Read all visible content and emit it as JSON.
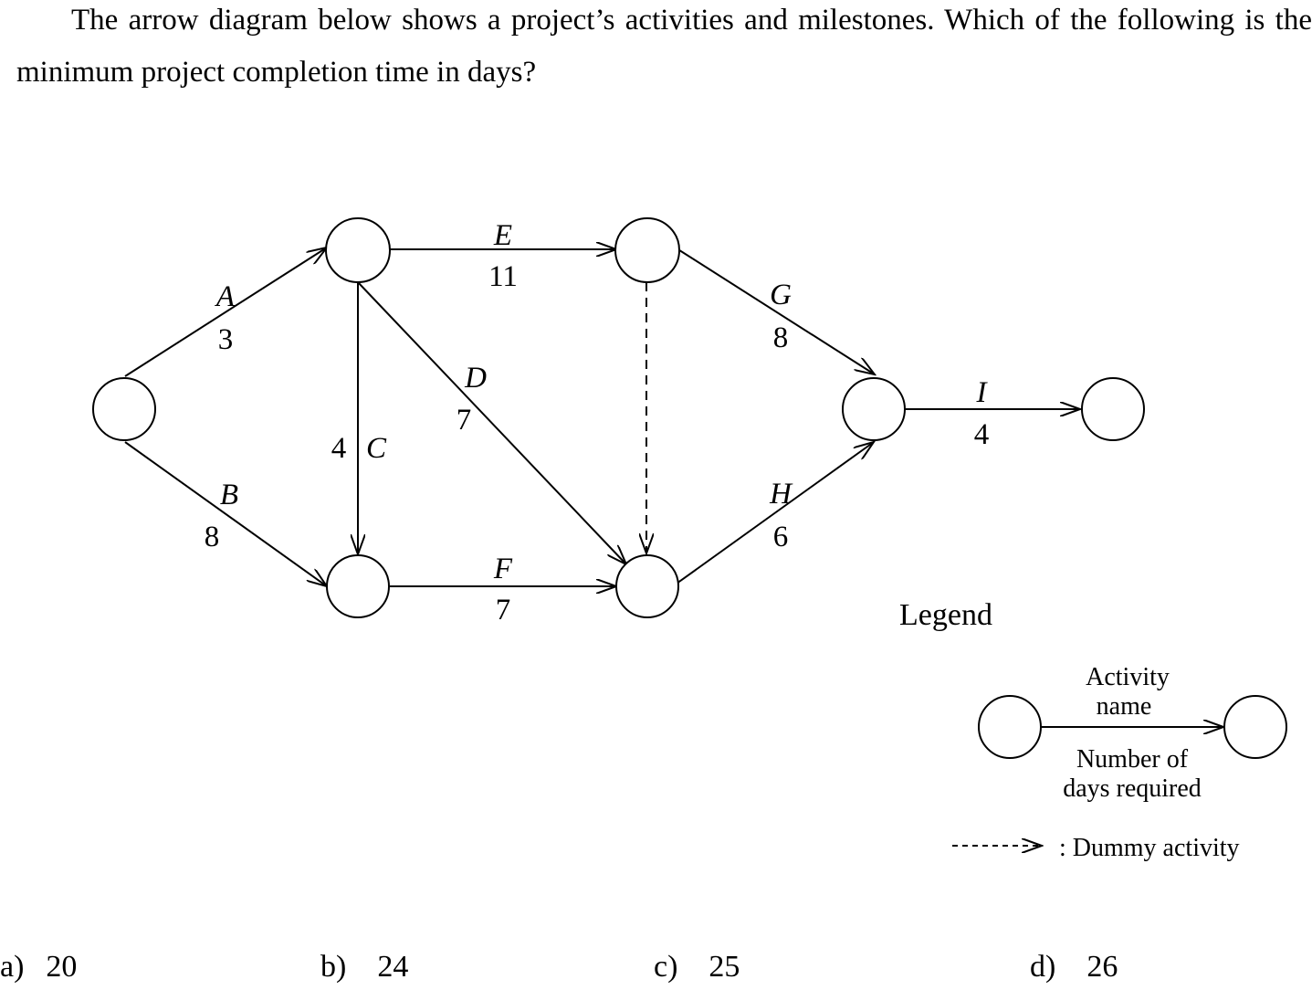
{
  "question": "The arrow diagram below shows a project’s activities and milestones. Which of the following is the minimum project completion time in days?",
  "activities": [
    {
      "id": "A",
      "name": "A",
      "days": "3",
      "from": "n1",
      "to": "n2"
    },
    {
      "id": "B",
      "name": "B",
      "days": "8",
      "from": "n1",
      "to": "n3"
    },
    {
      "id": "C",
      "name": "C",
      "days": "4",
      "from": "n2",
      "to": "n3"
    },
    {
      "id": "D",
      "name": "D",
      "days": "7",
      "from": "n2",
      "to": "n5"
    },
    {
      "id": "E",
      "name": "E",
      "days": "11",
      "from": "n2",
      "to": "n4"
    },
    {
      "id": "F",
      "name": "F",
      "days": "7",
      "from": "n3",
      "to": "n5"
    },
    {
      "id": "G",
      "name": "G",
      "days": "8",
      "from": "n4",
      "to": "n6"
    },
    {
      "id": "H",
      "name": "H",
      "days": "6",
      "from": "n5",
      "to": "n6"
    },
    {
      "id": "I",
      "name": "I",
      "days": "4",
      "from": "n6",
      "to": "n7"
    }
  ],
  "dummy_activities": [
    {
      "from": "n4",
      "to": "n5"
    }
  ],
  "legend": {
    "title": "Legend",
    "activity_name_line1": "Activity",
    "activity_name_line2": "name",
    "days_line1": "Number of",
    "days_line2": "days required",
    "dummy_label": ": Dummy activity"
  },
  "options": [
    {
      "letter": "a)",
      "value": "20"
    },
    {
      "letter": "b)",
      "value": "24"
    },
    {
      "letter": "c)",
      "value": "25"
    },
    {
      "letter": "d)",
      "value": "26"
    }
  ]
}
